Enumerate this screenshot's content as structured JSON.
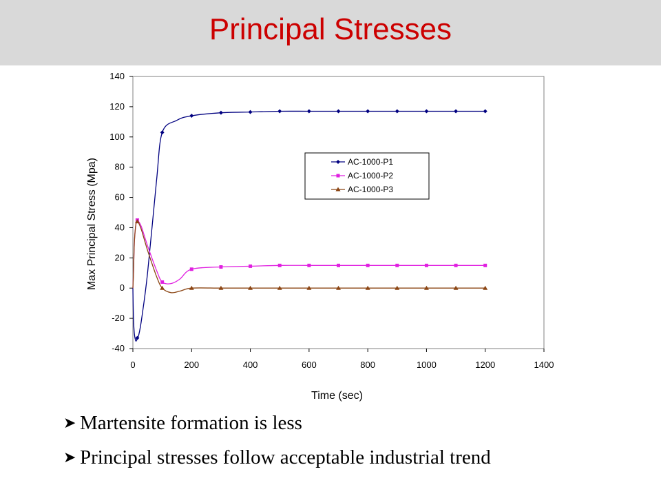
{
  "slide": {
    "title": "Principal Stresses",
    "bullets": [
      "Martensite formation is less",
      "Principal stresses follow acceptable industrial trend"
    ],
    "bullet_icon": "arrow-bullet-icon"
  },
  "chart_data": {
    "type": "line",
    "title": "",
    "xlabel": "Time (sec)",
    "ylabel": "Max Principal Stress (Mpa)",
    "xlim": [
      0,
      1400
    ],
    "ylim": [
      -40,
      140
    ],
    "xticks": [
      0,
      200,
      400,
      600,
      800,
      1000,
      1200,
      1400
    ],
    "yticks": [
      -40,
      -20,
      0,
      20,
      40,
      60,
      80,
      100,
      120,
      140
    ],
    "grid": false,
    "legend": "upper-right inside plot",
    "series": [
      {
        "name": "AC-1000-P1",
        "color": "#000080",
        "marker": "diamond",
        "x": [
          0,
          2,
          5,
          10,
          15,
          20,
          30,
          50,
          80,
          100,
          150,
          200,
          300,
          400,
          500,
          600,
          700,
          800,
          900,
          1000,
          1100,
          1200
        ],
        "y": [
          0,
          -20,
          -30,
          -35,
          -33,
          -31,
          -20,
          10,
          70,
          103,
          111,
          114,
          116,
          116.5,
          117,
          117,
          117,
          117,
          117,
          117,
          117,
          117
        ]
      },
      {
        "name": "AC-1000-P2",
        "color": "#e020e0",
        "marker": "square",
        "x": [
          0,
          2,
          5,
          10,
          15,
          20,
          30,
          50,
          80,
          100,
          130,
          160,
          200,
          300,
          400,
          500,
          600,
          700,
          800,
          900,
          1000,
          1100,
          1200
        ],
        "y": [
          0,
          10,
          30,
          42,
          45,
          44,
          40,
          28,
          12,
          4,
          3,
          6,
          12.5,
          14,
          14.5,
          15,
          15,
          15,
          15,
          15,
          15,
          15,
          15
        ]
      },
      {
        "name": "AC-1000-P3",
        "color": "#8b4513",
        "marker": "triangle",
        "x": [
          0,
          2,
          5,
          10,
          15,
          20,
          30,
          50,
          80,
          100,
          130,
          160,
          200,
          300,
          400,
          500,
          600,
          700,
          800,
          900,
          1000,
          1100,
          1200
        ],
        "y": [
          0,
          10,
          30,
          42,
          44,
          43,
          38,
          25,
          8,
          0,
          -3,
          -2,
          0,
          0,
          0,
          0,
          0,
          0,
          0,
          0,
          0,
          0,
          0
        ]
      }
    ]
  }
}
